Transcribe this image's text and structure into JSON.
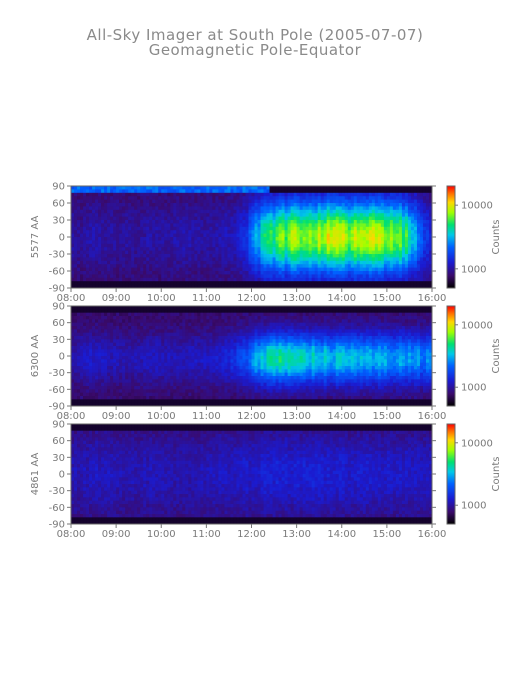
{
  "title": "All-Sky Imager at South Pole (2005-07-07)",
  "subtitle": "Geomagnetic Pole-Equator",
  "chart_data": [
    {
      "type": "heatmap",
      "ylabel": "5577 AA",
      "x_ticks": [
        "08:00",
        "09:00",
        "10:00",
        "11:00",
        "12:00",
        "13:00",
        "14:00",
        "15:00",
        "16:00"
      ],
      "y_ticks": [
        90,
        60,
        30,
        0,
        -30,
        -60,
        -90
      ],
      "ylim": [
        -90,
        90
      ],
      "colorbar": {
        "label": "Counts",
        "ticks": [
          1000,
          10000
        ],
        "tick_labels": [
          "1000",
          "10000"
        ]
      },
      "activity": [
        0.08,
        0.06,
        0.1,
        0.08,
        0.07,
        0.08,
        0.06,
        0.08,
        0.08,
        0.07,
        0.1,
        0.09,
        0.08,
        0.09,
        0.1,
        0.12,
        0.2,
        0.42,
        0.55,
        0.62,
        0.66,
        0.68,
        0.7,
        0.72,
        0.75,
        0.7,
        0.72,
        0.7,
        0.74,
        0.7,
        0.66,
        0.55,
        0.3,
        0.15
      ],
      "band_center": 0,
      "band_width": 65
    },
    {
      "type": "heatmap",
      "ylabel": "6300 AA",
      "x_ticks": [
        "08:00",
        "09:00",
        "10:00",
        "11:00",
        "12:00",
        "13:00",
        "14:00",
        "15:00",
        "16:00"
      ],
      "y_ticks": [
        90,
        60,
        30,
        0,
        -30,
        -60,
        -90
      ],
      "ylim": [
        -90,
        90
      ],
      "colorbar": {
        "label": "Counts",
        "ticks": [
          1000,
          10000
        ],
        "tick_labels": [
          "1000",
          "10000"
        ]
      },
      "activity": [
        0.1,
        0.12,
        0.14,
        0.12,
        0.1,
        0.1,
        0.1,
        0.12,
        0.12,
        0.1,
        0.12,
        0.12,
        0.12,
        0.14,
        0.16,
        0.2,
        0.28,
        0.42,
        0.5,
        0.52,
        0.5,
        0.48,
        0.48,
        0.46,
        0.44,
        0.45,
        0.46,
        0.44,
        0.42,
        0.42,
        0.4,
        0.38,
        0.36,
        0.35
      ],
      "band_center": -5,
      "band_width": 45
    },
    {
      "type": "heatmap",
      "ylabel": "4861 AA",
      "x_ticks": [
        "08:00",
        "09:00",
        "10:00",
        "11:00",
        "12:00",
        "13:00",
        "14:00",
        "15:00",
        "16:00"
      ],
      "y_ticks": [
        90,
        60,
        30,
        0,
        -30,
        -60,
        -90
      ],
      "ylim": [
        -90,
        90
      ],
      "colorbar": {
        "label": "Counts",
        "ticks": [
          1000,
          10000
        ],
        "tick_labels": [
          "1000",
          "10000"
        ]
      },
      "activity": [
        0.1,
        0.1,
        0.12,
        0.12,
        0.1,
        0.1,
        0.1,
        0.11,
        0.11,
        0.1,
        0.1,
        0.1,
        0.11,
        0.11,
        0.12,
        0.12,
        0.13,
        0.14,
        0.15,
        0.15,
        0.15,
        0.15,
        0.15,
        0.15,
        0.14,
        0.14,
        0.14,
        0.14,
        0.14,
        0.14,
        0.13,
        0.13,
        0.12,
        0.12
      ],
      "band_center": 0,
      "band_width": 80
    }
  ]
}
